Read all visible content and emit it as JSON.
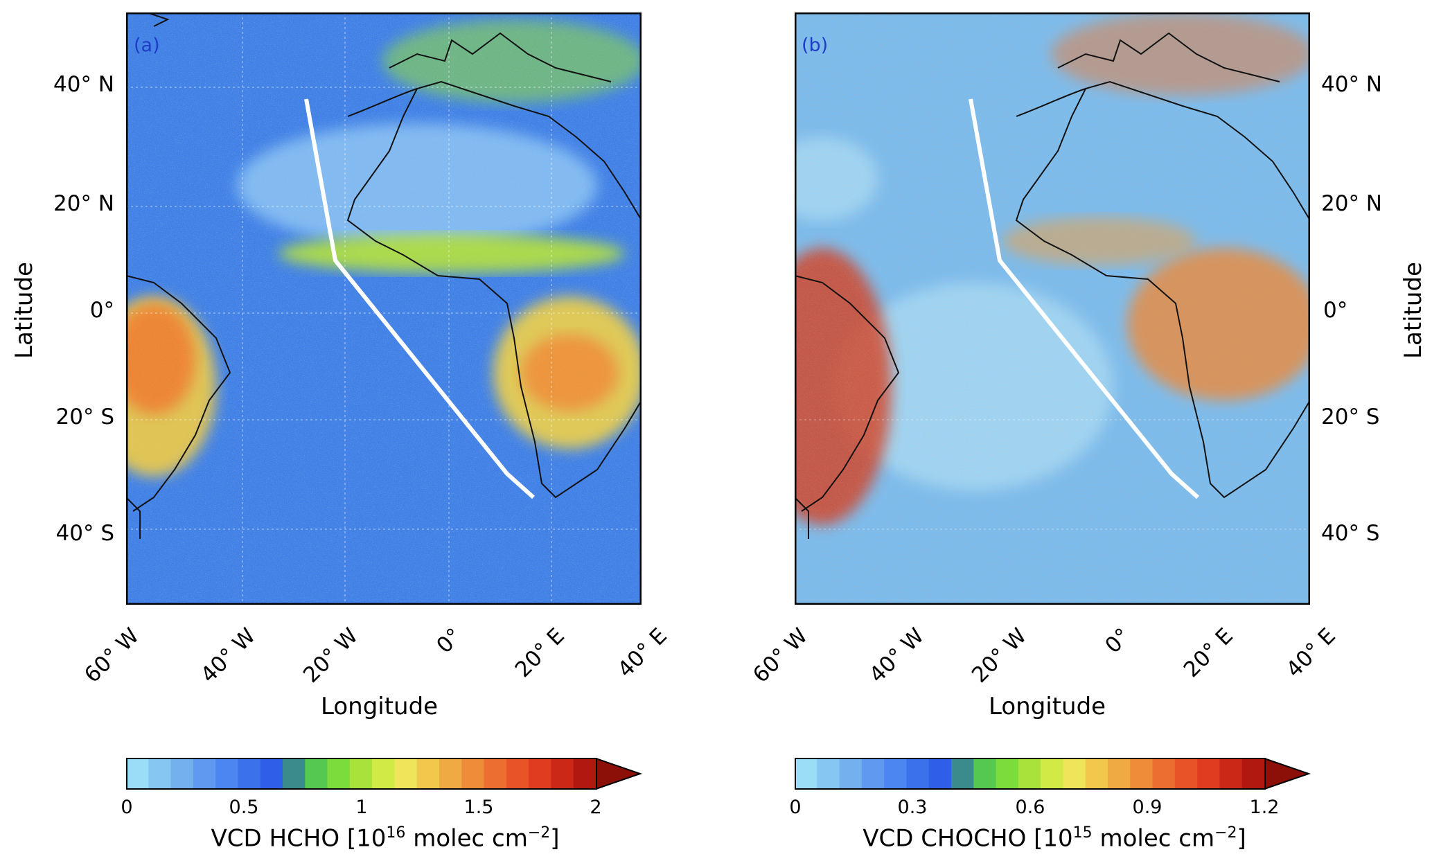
{
  "panels": [
    {
      "letter": "(a)",
      "xlabel": "Longitude",
      "ylabel": "Latitude",
      "lon_ticks": [
        "60° W",
        "40° W",
        "20° W",
        "0°",
        "20° E",
        "40° E"
      ],
      "lat_ticks": [
        "40° N",
        "20° N",
        "0°",
        "20° S",
        "40° S"
      ],
      "colorbar": {
        "label_prefix": "VCD HCHO [10",
        "label_exp": "16",
        "label_suffix": " molec cm",
        "label_exp2": "−2",
        "label_end": "]",
        "ticks": [
          "0",
          "0.5",
          "1",
          "1.5",
          "2"
        ],
        "range": [
          0,
          2
        ]
      }
    },
    {
      "letter": "(b)",
      "xlabel": "Longitude",
      "ylabel": "Latitude",
      "lon_ticks": [
        "60° W",
        "40° W",
        "20° W",
        "0°",
        "20° E",
        "40° E"
      ],
      "lat_ticks": [
        "40° N",
        "20° N",
        "0°",
        "20° S",
        "40° S"
      ],
      "colorbar": {
        "label_prefix": "VCD CHOCHO [10",
        "label_exp": "15",
        "label_suffix": " molec cm",
        "label_exp2": "−2",
        "label_end": "]",
        "ticks": [
          "0",
          "0.3",
          "0.6",
          "0.9",
          "1.2"
        ],
        "range": [
          0,
          1.2
        ]
      }
    }
  ],
  "colorbar_colors": [
    "#9bdcf7",
    "#86c6f2",
    "#74b0ee",
    "#5f9af0",
    "#4c86f0",
    "#3b72ec",
    "#2f5ee8",
    "#3a8c8c",
    "#55c850",
    "#7cdc3c",
    "#a8e23a",
    "#d2ea46",
    "#f0e45a",
    "#f2c84c",
    "#f0aa44",
    "#ee8c3a",
    "#ec6e30",
    "#e85428",
    "#e03c20",
    "#cc2818",
    "#b01810"
  ],
  "colorbar_extend_color": "#8c1008",
  "flight_track": [
    [
      -28,
      38
    ],
    [
      -22,
      9
    ],
    [
      11,
      -31
    ],
    [
      16,
      -34
    ]
  ]
}
